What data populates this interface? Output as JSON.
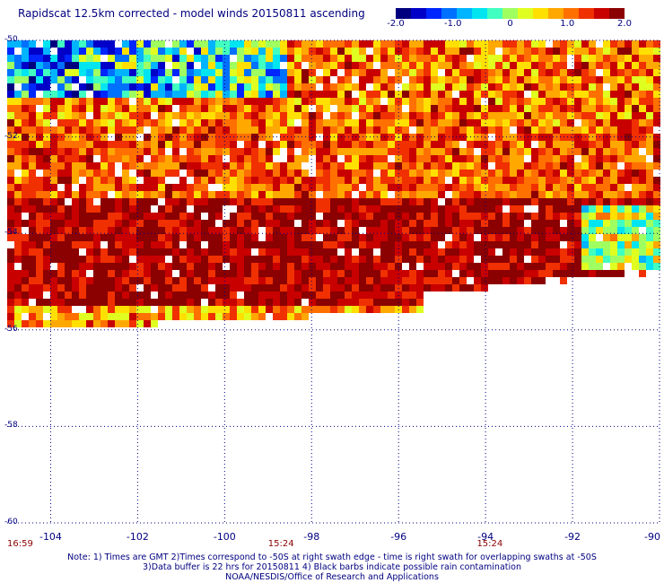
{
  "title": "Rapidscat 12.5km corrected - model winds 20150811 ascending",
  "colorbar": {
    "ticks": [
      "-2.0",
      "-1.0",
      "0",
      "1.0",
      "2.0"
    ],
    "tick_values": [
      -2.0,
      -1.0,
      0,
      1.0,
      2.0
    ],
    "range": [
      -2.0,
      2.0
    ],
    "colors": [
      "#00007f",
      "#0000c8",
      "#0026ff",
      "#0070ff",
      "#00b4ff",
      "#00e5f0",
      "#40ffc0",
      "#a0ff60",
      "#e0ff20",
      "#ffe000",
      "#ffa800",
      "#ff7000",
      "#f03000",
      "#c80000",
      "#8b0000"
    ]
  },
  "map": {
    "lat_labels": [
      "-50",
      "-52",
      "-54",
      "-56",
      "-58",
      "-60"
    ],
    "lat_values": [
      -50,
      -52,
      -54,
      -56,
      -58,
      -60
    ],
    "lon_labels": [
      "-104",
      "-102",
      "-100",
      "-98",
      "-96",
      "-94",
      "-92",
      "-90"
    ],
    "lon_values": [
      -104,
      -102,
      -100,
      -98,
      -96,
      -94,
      -92,
      -90
    ],
    "lon_range": [
      -105,
      -90
    ],
    "lat_range": [
      -50,
      -60
    ],
    "grid_color": "#000080",
    "swath_times": [
      "16:59",
      "15:24",
      "15:24"
    ],
    "swath_time_lons": [
      -105,
      -99,
      -94.2
    ],
    "time_color": "#8b0000"
  },
  "notes": [
    "Note: 1) Times are GMT 2)Times correspond to -50S at right swath edge - time is right swath for overlapping swaths at -50S",
    "3)Data buffer is 22 hrs for 20150811 4) Black barbs indicate possible rain contamination",
    "NOAA/NESDIS/Office of Research and Applications"
  ]
}
